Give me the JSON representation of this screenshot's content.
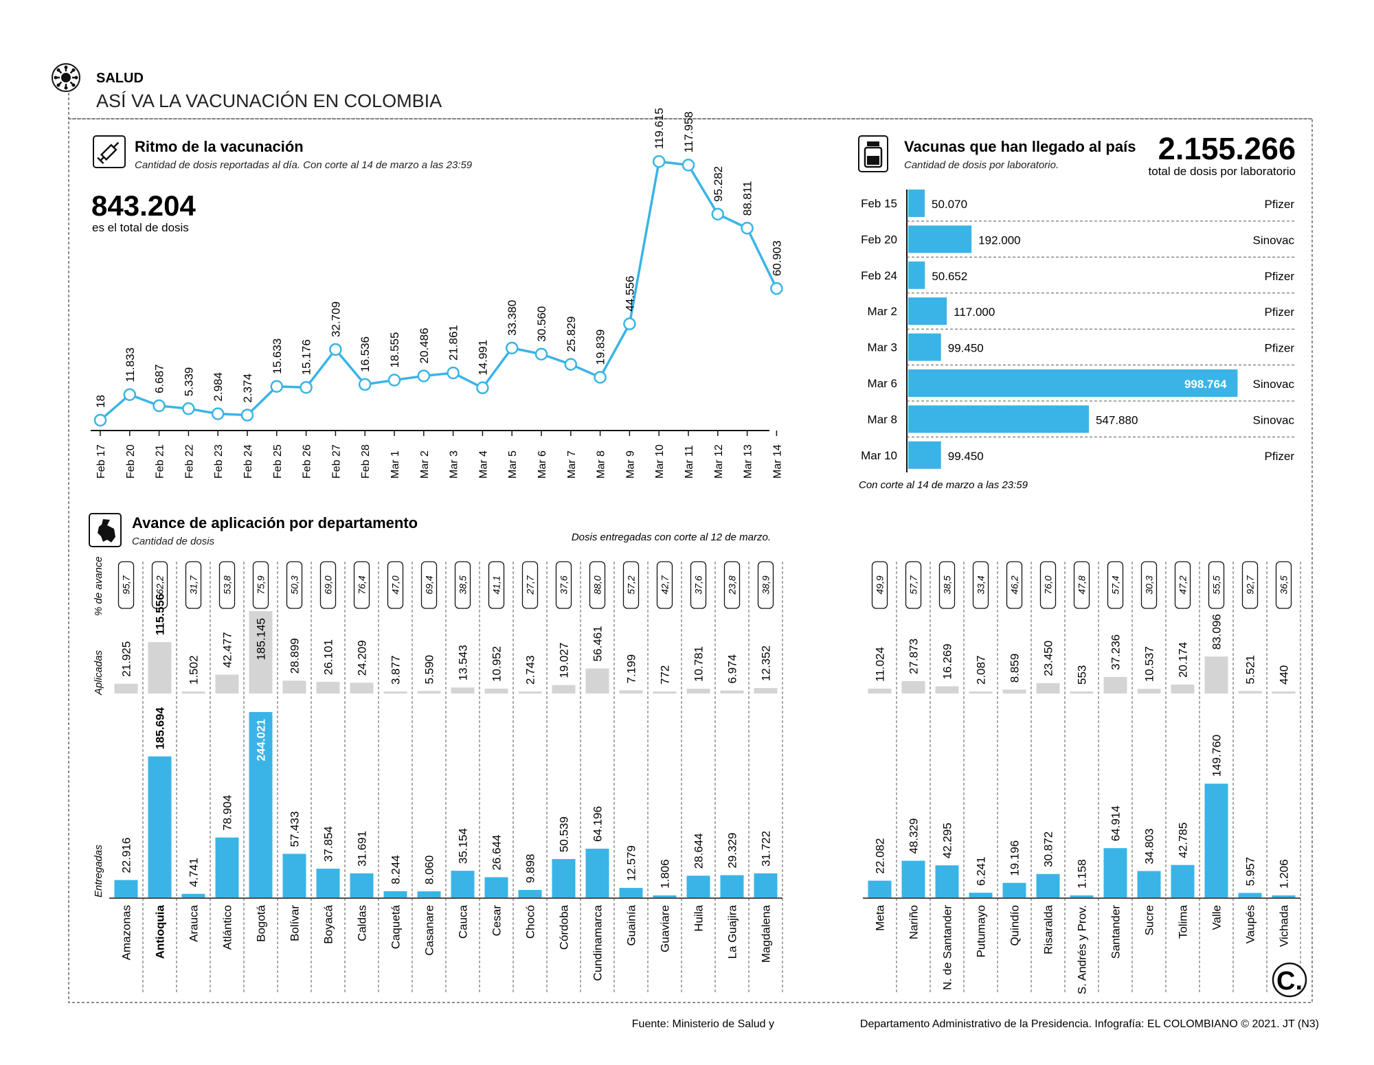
{
  "header": {
    "section": "SALUD",
    "title": "ASÍ VA LA VACUNACIÓN EN COLOMBIA"
  },
  "rhythm": {
    "title": "Ritmo de la vacunación",
    "subtitle": "Cantidad de dosis reportadas al día. Con corte al 14 de marzo a las 23:59",
    "total": "843.204",
    "total_label": "es el total de dosis"
  },
  "arrivals": {
    "title": "Vacunas que han llegado al país",
    "subtitle": "Cantidad de dosis por laboratorio.",
    "total": "2.155.266",
    "total_label": "total de dosis por laboratorio",
    "note": "Con corte al 14 de marzo a las 23:59"
  },
  "departments": {
    "title": "Avance de aplicación por departamento",
    "subtitle": "Cantidad de dosis",
    "note": "Dosis entregadas con corte al 12 de marzo.",
    "row_label_progress": "% de avance",
    "row_label_applied": "Aplicadas",
    "row_label_delivered": "Entregadas"
  },
  "footer": {
    "source": "Fuente: Ministerio de Salud y",
    "credits": "Departamento Administrativo de la Presidencia. Infografía: EL COLOMBIANO © 2021. JT (N3)",
    "logo_letter": "C."
  },
  "colors": {
    "accent": "#3ab4e6",
    "gray": "#d4d4d4",
    "text": "#111111"
  },
  "chart_data": [
    {
      "type": "line",
      "title": "Ritmo de la vacunación",
      "x": [
        "Feb 17",
        "Feb 20",
        "Feb 21",
        "Feb 22",
        "Feb 23",
        "Feb 24",
        "Feb 25",
        "Feb 26",
        "Feb 27",
        "Feb 28",
        "Mar 1",
        "Mar 2",
        "Mar 3",
        "Mar 4",
        "Mar 5",
        "Mar 6",
        "Mar 7",
        "Mar 8",
        "Mar 9",
        "Mar 10",
        "Mar 11",
        "Mar 12",
        "Mar 13",
        "Mar 14"
      ],
      "values": [
        18,
        11833,
        6687,
        5339,
        2984,
        2374,
        15633,
        15176,
        32709,
        16536,
        18555,
        20486,
        21861,
        14991,
        33380,
        30560,
        25829,
        19839,
        44556,
        119615,
        117958,
        95282,
        88811,
        60903
      ],
      "labels": [
        "18",
        "11.833",
        "6.687",
        "5.339",
        "2.984",
        "2.374",
        "15.633",
        "15.176",
        "32.709",
        "16.536",
        "18.555",
        "20.486",
        "21.861",
        "14.991",
        "33.380",
        "30.560",
        "25.829",
        "19.839",
        "44.556",
        "119.615",
        "117.958",
        "95.282",
        "88.811",
        "60.903"
      ],
      "ylim": [
        0,
        120000
      ]
    },
    {
      "type": "bar",
      "title": "Vacunas que han llegado al país",
      "categories": [
        "Feb 15",
        "Feb 20",
        "Feb 24",
        "Mar 2",
        "Mar 3",
        "Mar 6",
        "Mar 8",
        "Mar 10"
      ],
      "values": [
        50070,
        192000,
        50652,
        117000,
        99450,
        998764,
        547880,
        99450
      ],
      "labels": [
        "50.070",
        "192.000",
        "50.652",
        "117.000",
        "99.450",
        "998.764",
        "547.880",
        "99.450"
      ],
      "labs": [
        "Pfizer",
        "Sinovac",
        "Pfizer",
        "Pfizer",
        "Pfizer",
        "Sinovac",
        "Sinovac",
        "Pfizer"
      ],
      "xlim": [
        0,
        1000000
      ]
    },
    {
      "type": "bar",
      "title": "Avance de aplicación por departamento",
      "categories": [
        "Amazonas",
        "Antioquia",
        "Arauca",
        "Atlántico",
        "Bogotá",
        "Bolívar",
        "Boyacá",
        "Caldas",
        "Caquetá",
        "Casanare",
        "Cauca",
        "Cesar",
        "Chocó",
        "Córdoba",
        "Cundinamarca",
        "Guainía",
        "Guaviare",
        "Huila",
        "La Guajira",
        "Magdalena",
        "Meta",
        "Nariño",
        "N. de Santander",
        "Putumayo",
        "Quindío",
        "Risaralda",
        "S. Andrés y Prov.",
        "Santander",
        "Sucre",
        "Tolima",
        "Valle",
        "Vaupés",
        "Vichada"
      ],
      "series": [
        {
          "name": "Entregadas",
          "values": [
            22916,
            185694,
            4741,
            78904,
            244021,
            57433,
            37854,
            31691,
            8244,
            8060,
            35154,
            26644,
            9898,
            50539,
            64196,
            12579,
            1806,
            28644,
            29329,
            31722,
            22082,
            48329,
            42295,
            6241,
            19196,
            30872,
            1158,
            64914,
            34803,
            42785,
            149760,
            5957,
            1206
          ],
          "labels": [
            "22.916",
            "185.694",
            "4.741",
            "78.904",
            "244.021",
            "57.433",
            "37.854",
            "31.691",
            "8.244",
            "8.060",
            "35.154",
            "26.644",
            "9.898",
            "50.539",
            "64.196",
            "12.579",
            "1.806",
            "28.644",
            "29.329",
            "31.722",
            "22.082",
            "48.329",
            "42.295",
            "6.241",
            "19.196",
            "30.872",
            "1.158",
            "64.914",
            "34.803",
            "42.785",
            "149.760",
            "5.957",
            "1.206"
          ]
        },
        {
          "name": "Aplicadas",
          "values": [
            21925,
            115556,
            1502,
            42477,
            185145,
            28899,
            26101,
            24209,
            3877,
            5590,
            13543,
            10952,
            2743,
            19027,
            56461,
            7199,
            772,
            10781,
            6974,
            12352,
            11024,
            27873,
            16269,
            2087,
            8859,
            23450,
            553,
            37236,
            10537,
            20174,
            83096,
            5521,
            440
          ],
          "labels": [
            "21.925",
            "115.556",
            "1.502",
            "42.477",
            "185.145",
            "28.899",
            "26.101",
            "24.209",
            "3.877",
            "5.590",
            "13.543",
            "10.952",
            "2.743",
            "19.027",
            "56.461",
            "7.199",
            "772",
            "10.781",
            "6.974",
            "12.352",
            "11.024",
            "27.873",
            "16.269",
            "2.087",
            "8.859",
            "23.450",
            "553",
            "37.236",
            "10.537",
            "20.174",
            "83.096",
            "5.521",
            "440"
          ]
        },
        {
          "name": "% de avance",
          "values": [
            95.7,
            62.2,
            31.7,
            53.8,
            75.9,
            50.3,
            69.0,
            76.4,
            47.0,
            69.4,
            38.5,
            41.1,
            27.7,
            37.6,
            88.0,
            57.2,
            42.7,
            37.6,
            23.8,
            38.9,
            49.9,
            57.7,
            38.5,
            33.4,
            46.2,
            76.0,
            47.8,
            57.4,
            30.3,
            47.2,
            55.5,
            92.7,
            36.5
          ],
          "labels": [
            "95,7",
            "62,2",
            "31,7",
            "53,8",
            "75,9",
            "50,3",
            "69,0",
            "76,4",
            "47,0",
            "69,4",
            "38,5",
            "41,1",
            "27,7",
            "37,6",
            "88,0",
            "57,2",
            "42,7",
            "37,6",
            "23,8",
            "38,9",
            "49,9",
            "57,7",
            "38,5",
            "33,4",
            "46,2",
            "76,0",
            "47,8",
            "57,4",
            "30,3",
            "47,2",
            "55,5",
            "92,7",
            "36,5"
          ]
        }
      ],
      "highlight": [
        "Antioquia"
      ]
    }
  ]
}
